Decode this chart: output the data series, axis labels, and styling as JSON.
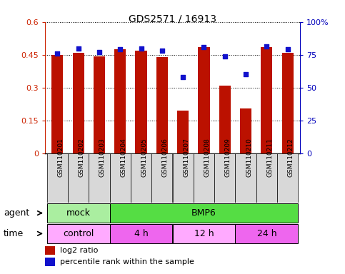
{
  "title": "GDS2571 / 16913",
  "samples": [
    "GSM110201",
    "GSM110202",
    "GSM110203",
    "GSM110204",
    "GSM110205",
    "GSM110206",
    "GSM110207",
    "GSM110208",
    "GSM110209",
    "GSM110210",
    "GSM110211",
    "GSM110212"
  ],
  "log2_ratio": [
    0.45,
    0.458,
    0.443,
    0.476,
    0.47,
    0.438,
    0.195,
    0.485,
    0.308,
    0.205,
    0.484,
    0.458
  ],
  "percentile_rank": [
    76,
    80,
    77,
    79.5,
    80,
    78,
    58,
    81,
    74,
    60,
    81.5,
    79
  ],
  "ylim_left": [
    0,
    0.6
  ],
  "ylim_right": [
    0,
    100
  ],
  "yticks_left": [
    0,
    0.15,
    0.3,
    0.45,
    0.6
  ],
  "ytick_labels_left": [
    "0",
    "0.15",
    "0.3",
    "0.45",
    "0.6"
  ],
  "yticks_right": [
    0,
    25,
    50,
    75,
    100
  ],
  "ytick_labels_right": [
    "0",
    "25",
    "50",
    "75",
    "100%"
  ],
  "bar_color": "#bb1100",
  "dot_color": "#1111cc",
  "agent_labels": [
    {
      "label": "mock",
      "start": 0,
      "end": 3,
      "color": "#aaeea0"
    },
    {
      "label": "BMP6",
      "start": 3,
      "end": 12,
      "color": "#55dd44"
    }
  ],
  "time_labels": [
    {
      "label": "control",
      "start": 0,
      "end": 3,
      "color": "#ffaaff"
    },
    {
      "label": "4 h",
      "start": 3,
      "end": 6,
      "color": "#ee66ee"
    },
    {
      "label": "12 h",
      "start": 6,
      "end": 9,
      "color": "#ffaaff"
    },
    {
      "label": "24 h",
      "start": 9,
      "end": 12,
      "color": "#ee66ee"
    }
  ],
  "tick_color_left": "#cc2200",
  "tick_color_right": "#0000bb",
  "bar_width": 0.55,
  "fig_width": 4.83,
  "fig_height": 3.84,
  "dpi": 100
}
